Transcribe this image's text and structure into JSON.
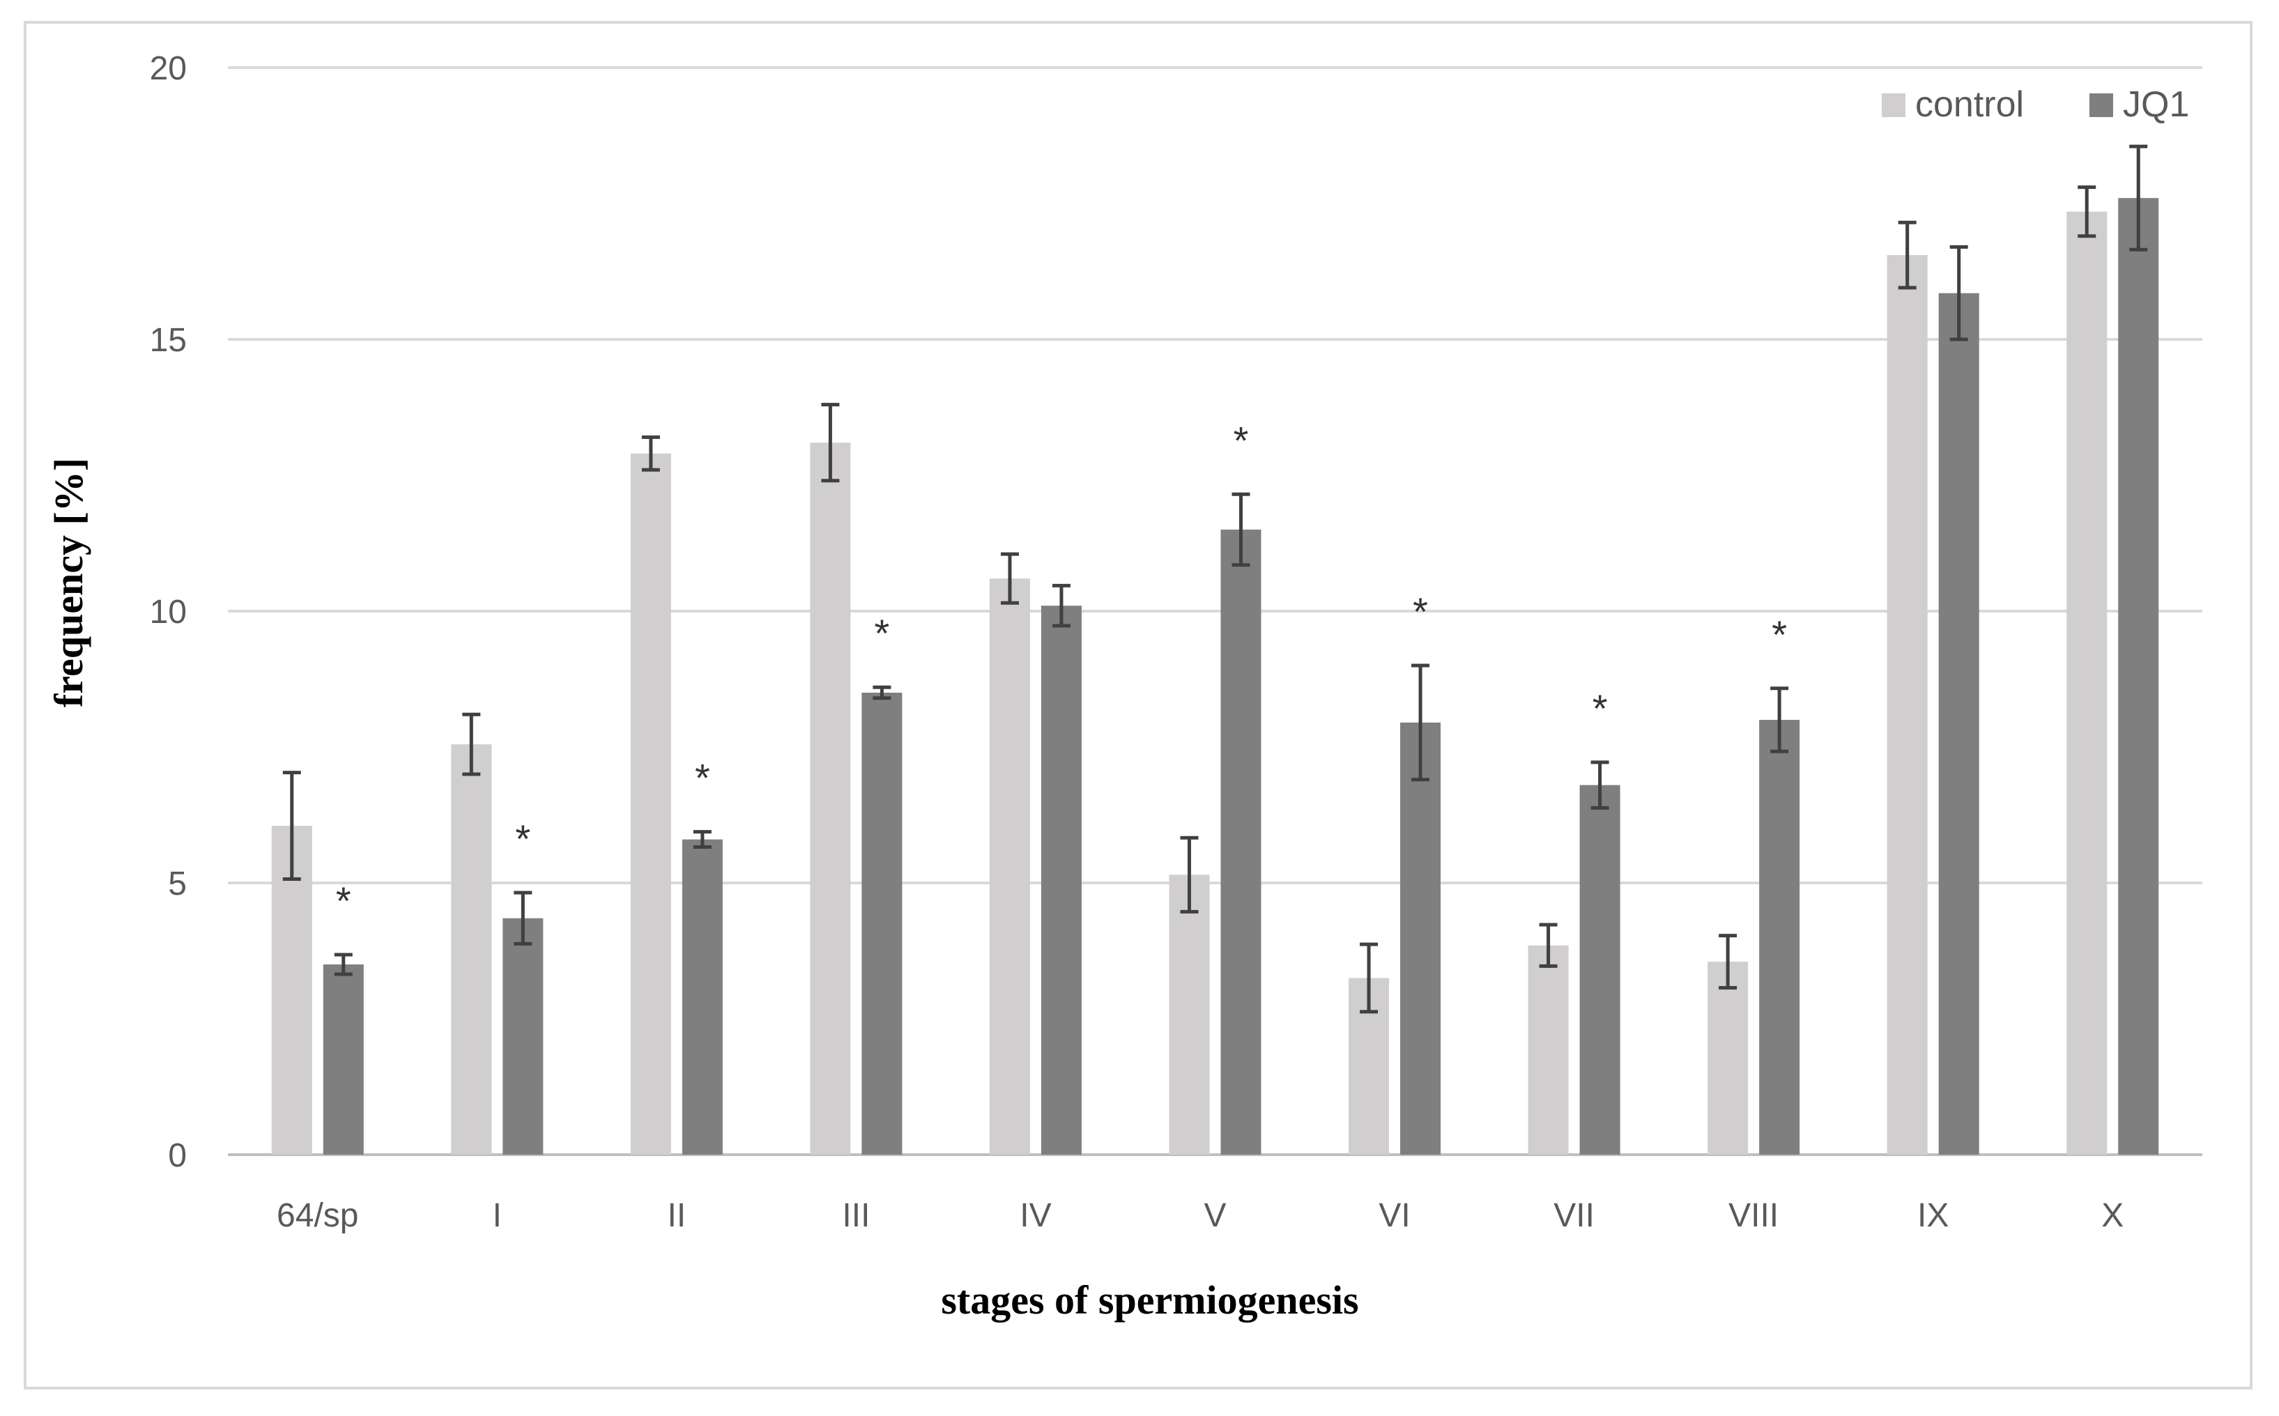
{
  "chart_data": {
    "type": "bar",
    "title": "",
    "xlabel": "stages of spermiogenesis",
    "ylabel": "frequency [%]",
    "ylim": [
      0,
      20
    ],
    "yticks": [
      0,
      5,
      10,
      15,
      20
    ],
    "grid": true,
    "legend_position": "top-right",
    "categories": [
      "64/sp",
      "I",
      "II",
      "III",
      "IV",
      "V",
      "VI",
      "VII",
      "VIII",
      "IX",
      "X"
    ],
    "series": [
      {
        "name": "control",
        "color": "#d0cece",
        "values": [
          6.05,
          7.55,
          12.9,
          13.1,
          10.6,
          5.15,
          3.25,
          3.85,
          3.55,
          16.55,
          17.35
        ],
        "errors": [
          0.98,
          0.55,
          0.3,
          0.7,
          0.45,
          0.68,
          0.62,
          0.38,
          0.48,
          0.6,
          0.45
        ]
      },
      {
        "name": "JQ1",
        "color": "#7f7f7f",
        "values": [
          3.5,
          4.35,
          5.8,
          8.5,
          10.1,
          11.5,
          7.95,
          6.8,
          8.0,
          15.85,
          17.6
        ],
        "errors": [
          0.18,
          0.47,
          0.14,
          0.1,
          0.37,
          0.65,
          1.05,
          0.42,
          0.58,
          0.85,
          0.95
        ]
      }
    ],
    "significance": [
      {
        "category": "64/sp",
        "series": "JQ1",
        "label": "*"
      },
      {
        "category": "I",
        "series": "JQ1",
        "label": "*"
      },
      {
        "category": "II",
        "series": "JQ1",
        "label": "*"
      },
      {
        "category": "III",
        "series": "JQ1",
        "label": "*"
      },
      {
        "category": "V",
        "series": "JQ1",
        "label": "*"
      },
      {
        "category": "VI",
        "series": "JQ1",
        "label": "*"
      },
      {
        "category": "VII",
        "series": "JQ1",
        "label": "*"
      },
      {
        "category": "VIII",
        "series": "JQ1",
        "label": "*"
      }
    ]
  }
}
